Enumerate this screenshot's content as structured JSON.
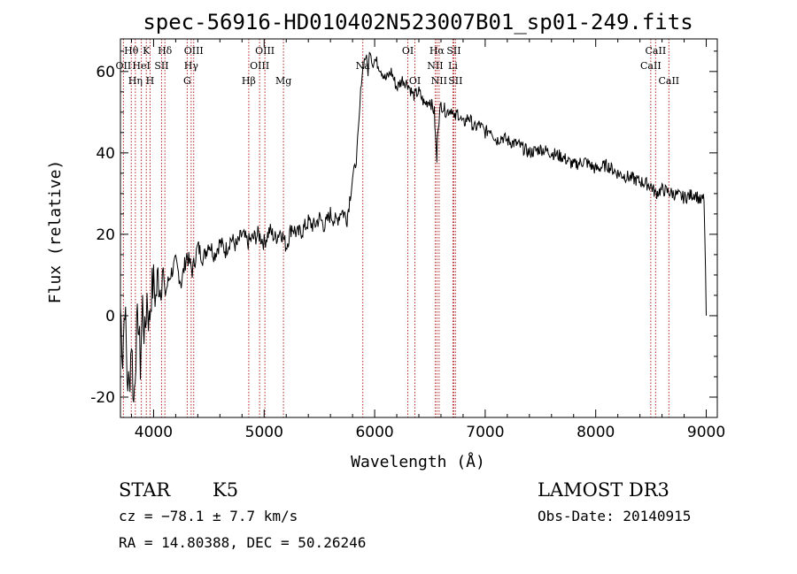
{
  "chart_data": {
    "type": "line",
    "title": "spec-56916-HD010402N523007B01_sp01-249.fits",
    "xlabel": "Wavelength (Å)",
    "ylabel": "Flux (relative)",
    "xlim": [
      3700,
      9100
    ],
    "ylim": [
      -25,
      68
    ],
    "x_ticks": [
      4000,
      5000,
      6000,
      7000,
      8000,
      9000
    ],
    "y_ticks": [
      -20,
      0,
      20,
      40,
      60
    ],
    "grid": false,
    "series": [
      {
        "x": [
          3700,
          3720,
          3740,
          3760,
          3780,
          3800,
          3820,
          3840,
          3860,
          3880,
          3900,
          3920,
          3940,
          3960,
          3980,
          4000,
          4020,
          4040,
          4060,
          4080,
          4100,
          4150,
          4200,
          4250,
          4300,
          4350,
          4400,
          4450,
          4500,
          4550,
          4600,
          4650,
          4700,
          4750,
          4800,
          4850,
          4900,
          4950,
          5000,
          5050,
          5100,
          5150,
          5200,
          5250,
          5300,
          5350,
          5400,
          5450,
          5500,
          5550,
          5600,
          5650,
          5700,
          5750,
          5780,
          5800,
          5820,
          5840,
          5860,
          5880,
          5900,
          5920,
          5940,
          5960,
          5980,
          6000,
          6050,
          6100,
          6150,
          6200,
          6250,
          6300,
          6350,
          6400,
          6450,
          6500,
          6540,
          6550,
          6563,
          6570,
          6600,
          6650,
          6700,
          6720,
          6750,
          6800,
          6850,
          6900,
          6950,
          7000,
          7050,
          7100,
          7150,
          7200,
          7300,
          7400,
          7500,
          7600,
          7700,
          7800,
          7900,
          8000,
          8100,
          8200,
          8300,
          8400,
          8500,
          8540,
          8600,
          8700,
          8800,
          8900,
          8950,
          8980,
          9000
        ],
        "y": [
          2,
          -10,
          4,
          -15,
          -18,
          -5,
          -22,
          -8,
          0,
          -12,
          3,
          -6,
          5,
          -2,
          6,
          8,
          4,
          10,
          7,
          12,
          5,
          10,
          13,
          8,
          15,
          11,
          17,
          14,
          18,
          15,
          18,
          16,
          19,
          17,
          20,
          18,
          19,
          20,
          18,
          21,
          19,
          21,
          17,
          22,
          20,
          21,
          23,
          22,
          24,
          22,
          25,
          23,
          26,
          24,
          30,
          34,
          36,
          40,
          48,
          58,
          62,
          64,
          60,
          66,
          62,
          63,
          61,
          58,
          60,
          56,
          58,
          57,
          54,
          55,
          52,
          53,
          50,
          44,
          38,
          46,
          52,
          50,
          51,
          48,
          50,
          47,
          49,
          46,
          47,
          45,
          46,
          43,
          44,
          43,
          42,
          40,
          41,
          40,
          39,
          37,
          38,
          36,
          37,
          35,
          34,
          33,
          32,
          30,
          31,
          30,
          29,
          30,
          28,
          29,
          0
        ],
        "color": "#000000"
      }
    ],
    "spectral_lines": [
      {
        "label": "Hθ",
        "wavelength": 3798,
        "row": 1
      },
      {
        "label": "OII",
        "wavelength": 3727,
        "row": 2
      },
      {
        "label": "Hη",
        "wavelength": 3835,
        "row": 3
      },
      {
        "label": "HeI",
        "wavelength": 3889,
        "row": 2
      },
      {
        "label": "K",
        "wavelength": 3934,
        "row": 1
      },
      {
        "label": "H",
        "wavelength": 3968,
        "row": 3
      },
      {
        "label": "SII",
        "wavelength": 4072,
        "row": 2
      },
      {
        "label": "Hδ",
        "wavelength": 4102,
        "row": 1
      },
      {
        "label": "OIII",
        "wavelength": 4363,
        "row": 1
      },
      {
        "label": "Hγ",
        "wavelength": 4340,
        "row": 2
      },
      {
        "label": "G",
        "wavelength": 4304,
        "row": 3
      },
      {
        "label": "Hβ",
        "wavelength": 4861,
        "row": 3
      },
      {
        "label": "OIII",
        "wavelength": 4959,
        "row": 2
      },
      {
        "label": "OIII",
        "wavelength": 5007,
        "row": 1
      },
      {
        "label": "Mg",
        "wavelength": 5175,
        "row": 3
      },
      {
        "label": "Na",
        "wavelength": 5893,
        "row": 2
      },
      {
        "label": "OI",
        "wavelength": 6300,
        "row": 1
      },
      {
        "label": "OI",
        "wavelength": 6364,
        "row": 3
      },
      {
        "label": "Hα",
        "wavelength": 6563,
        "row": 1
      },
      {
        "label": "NII",
        "wavelength": 6548,
        "row": 2
      },
      {
        "label": "NII",
        "wavelength": 6583,
        "row": 3
      },
      {
        "label": "SII",
        "wavelength": 6716,
        "row": 1
      },
      {
        "label": "Li",
        "wavelength": 6708,
        "row": 2
      },
      {
        "label": "SII",
        "wavelength": 6731,
        "row": 3
      },
      {
        "label": "CaII",
        "wavelength": 8542,
        "row": 1
      },
      {
        "label": "CaII",
        "wavelength": 8498,
        "row": 2
      },
      {
        "label": "CaII",
        "wavelength": 8662,
        "row": 3
      }
    ],
    "line_marker_color": "#b22222"
  },
  "info": {
    "object_class": "STAR",
    "subclass": "K5",
    "survey": "LAMOST DR3",
    "cz": "cz = −78.1 ± 7.7 km/s",
    "obs_date": "Obs-Date: 20140915",
    "coords": "RA =  14.80388, DEC =  50.26246"
  }
}
